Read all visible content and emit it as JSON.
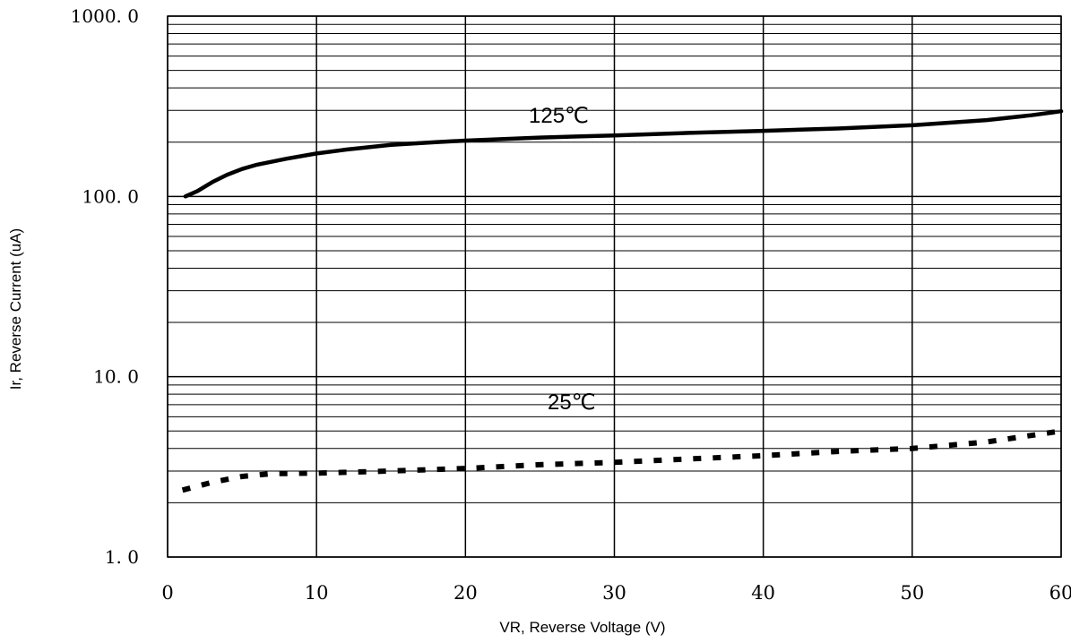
{
  "chart_data": {
    "type": "line",
    "xlabel": "VR, Reverse Voltage (V)",
    "ylabel": "Ir, Reverse Current (uA)",
    "xlim": [
      0,
      60
    ],
    "ylim": [
      1,
      1000
    ],
    "yscale": "log",
    "grid": true,
    "x_ticks": [
      "0",
      "10",
      "20",
      "30",
      "40",
      "50",
      "60"
    ],
    "y_ticks": [
      "1. 0",
      "10. 0",
      "100. 0",
      "1000. 0"
    ],
    "series": [
      {
        "name": "125℃",
        "style": "solid",
        "x": [
          1.2,
          2,
          3,
          4,
          5,
          6,
          8,
          10,
          12,
          15,
          18,
          20,
          25,
          30,
          35,
          40,
          45,
          50,
          55,
          58,
          60
        ],
        "y": [
          100,
          107,
          120,
          132,
          142,
          150,
          162,
          173,
          182,
          193,
          200,
          204,
          212,
          218,
          225,
          231,
          238,
          248,
          265,
          282,
          297
        ]
      },
      {
        "name": "25℃",
        "style": "dotted",
        "x": [
          1,
          3,
          5,
          7,
          10,
          15,
          20,
          25,
          30,
          35,
          40,
          45,
          50,
          55,
          60
        ],
        "y": [
          2.35,
          2.6,
          2.8,
          2.9,
          2.92,
          3.0,
          3.1,
          3.25,
          3.35,
          3.5,
          3.65,
          3.85,
          4.0,
          4.35,
          5.0
        ]
      }
    ]
  },
  "colors": {
    "line": "#000000",
    "grid": "#000000",
    "background": "#ffffff"
  }
}
